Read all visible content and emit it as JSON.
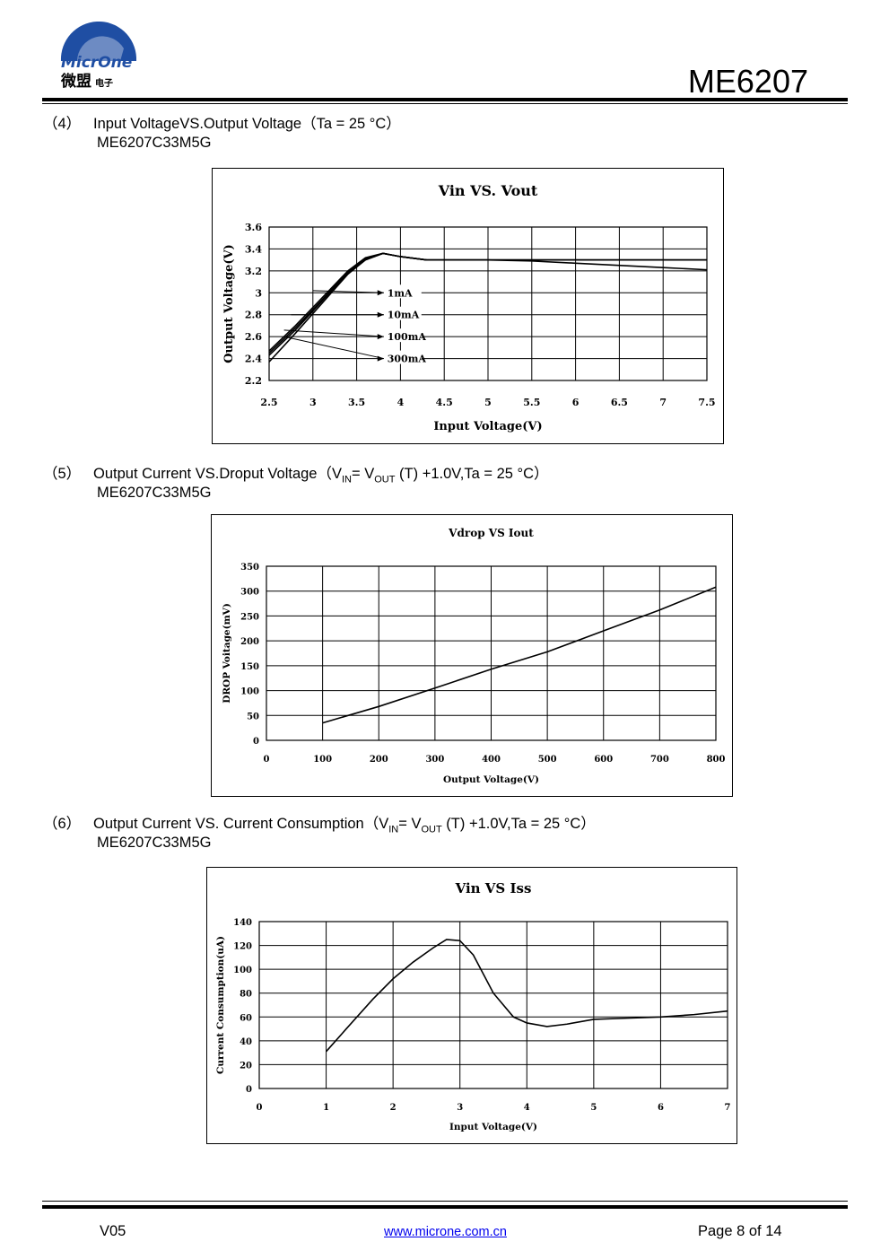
{
  "header": {
    "logo_text": "MicrOne",
    "logo_cn": "微盟",
    "logo_cn_small": "电子",
    "part_number": "ME6207"
  },
  "sections": [
    {
      "num": "（4）",
      "title": "Input VoltageVS.Output Voltage（Ta = 25 °C）",
      "model": "ME6207C33M5G"
    },
    {
      "num": "（5）",
      "title_a": "Output Current VS.Droput Voltage（V",
      "sub_in": "IN",
      "title_b": "= V",
      "sub_out": "OUT",
      "title_c": " (T) +1.0V,Ta = 25 °C）",
      "model": "ME6207C33M5G"
    },
    {
      "num": "（6）",
      "title_a": "Output Current VS. Current Consumption（V",
      "sub_in": "IN",
      "title_b": "= V",
      "sub_out": "OUT",
      "title_c": " (T) +1.0V,Ta = 25 °C）",
      "model": "ME6207C33M5G"
    }
  ],
  "chart_data": [
    {
      "type": "line",
      "title": "Vin VS. Vout",
      "xlabel": "Input Voltage(V)",
      "ylabel": "Output Voltage(V)",
      "xlim": [
        2.5,
        7.5
      ],
      "ylim": [
        2.2,
        3.6
      ],
      "xticks": [
        "2.5",
        "3",
        "3.5",
        "4",
        "4.5",
        "5",
        "5.5",
        "6",
        "6.5",
        "7",
        "7.5"
      ],
      "yticks": [
        "2.2",
        "2.4",
        "2.6",
        "2.8",
        "3",
        "3.2",
        "3.4",
        "3.6"
      ],
      "grid": true,
      "annotations": [
        "1mA",
        "10mA",
        "100mA",
        "300mA"
      ],
      "series": [
        {
          "name": "1mA",
          "x": [
            2.5,
            2.8,
            3.1,
            3.4,
            3.6,
            3.8,
            4.0,
            4.3,
            5.0,
            6.0,
            7.5
          ],
          "y": [
            2.47,
            2.7,
            2.95,
            3.2,
            3.32,
            3.36,
            3.33,
            3.3,
            3.3,
            3.3,
            3.3
          ]
        },
        {
          "name": "10mA",
          "x": [
            2.5,
            2.8,
            3.1,
            3.4,
            3.6,
            3.8,
            4.0,
            4.3,
            5.0,
            6.0,
            7.5
          ],
          "y": [
            2.45,
            2.68,
            2.93,
            3.19,
            3.31,
            3.36,
            3.33,
            3.3,
            3.3,
            3.3,
            3.3
          ]
        },
        {
          "name": "100mA",
          "x": [
            2.5,
            2.8,
            3.1,
            3.4,
            3.6,
            3.8,
            4.0,
            4.3,
            5.0,
            6.0,
            7.5
          ],
          "y": [
            2.43,
            2.66,
            2.92,
            3.18,
            3.3,
            3.36,
            3.33,
            3.3,
            3.3,
            3.3,
            3.3
          ]
        },
        {
          "name": "300mA",
          "x": [
            2.5,
            2.8,
            3.1,
            3.4,
            3.6,
            3.8,
            4.0,
            4.3,
            5.0,
            5.5,
            6.0,
            7.0,
            7.5
          ],
          "y": [
            2.37,
            2.63,
            2.9,
            3.17,
            3.3,
            3.36,
            3.33,
            3.3,
            3.3,
            3.29,
            3.27,
            3.23,
            3.21
          ]
        }
      ]
    },
    {
      "type": "line",
      "title": "Vdrop VS Iout",
      "xlabel": "Output Voltage(V)",
      "ylabel": "DROP Voitage(mV)",
      "xlim": [
        0,
        800
      ],
      "ylim": [
        0,
        350
      ],
      "xticks": [
        "0",
        "100",
        "200",
        "300",
        "400",
        "500",
        "600",
        "700",
        "800"
      ],
      "yticks": [
        "0",
        "50",
        "100",
        "150",
        "200",
        "250",
        "300",
        "350"
      ],
      "grid": true,
      "series": [
        {
          "name": "",
          "x": [
            100,
            200,
            300,
            400,
            500,
            600,
            700,
            800
          ],
          "y": [
            35,
            68,
            105,
            143,
            178,
            220,
            262,
            308
          ]
        }
      ]
    },
    {
      "type": "line",
      "title": "Vin VS Iss",
      "xlabel": "Input Voltage(V)",
      "ylabel": "Current Consumption(uA)",
      "xlim": [
        0,
        7
      ],
      "ylim": [
        0,
        140
      ],
      "xticks": [
        "0",
        "1",
        "2",
        "3",
        "4",
        "5",
        "6",
        "7"
      ],
      "yticks": [
        "0",
        "20",
        "40",
        "60",
        "80",
        "100",
        "120",
        "140"
      ],
      "grid": true,
      "series": [
        {
          "name": "",
          "x": [
            1.0,
            1.3,
            1.7,
            2.0,
            2.3,
            2.6,
            2.8,
            3.0,
            3.2,
            3.5,
            3.8,
            4.0,
            4.3,
            4.6,
            5.0,
            5.5,
            6.0,
            6.5,
            7.0
          ],
          "y": [
            31,
            50,
            75,
            92,
            106,
            118,
            125,
            124,
            112,
            80,
            60,
            55,
            52,
            54,
            58,
            59,
            60,
            62,
            65
          ]
        }
      ]
    }
  ],
  "footer": {
    "version": "V05",
    "url": "www.microne.com.cn",
    "page": "Page 8 of 14"
  }
}
